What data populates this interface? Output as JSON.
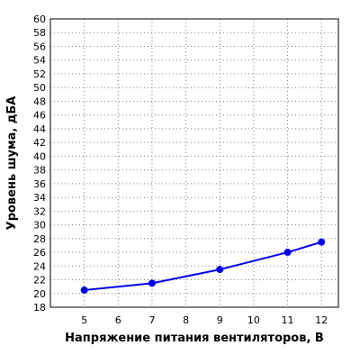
{
  "chart_data": {
    "type": "line",
    "title": "",
    "xlabel": "Напряжение питания вентиляторов, В",
    "ylabel": "Уровень шума, дБА",
    "xlim": [
      4,
      12.5
    ],
    "ylim": [
      18,
      60
    ],
    "xticks": [
      5,
      6,
      7,
      8,
      9,
      10,
      11,
      12
    ],
    "yticks": [
      18,
      20,
      22,
      24,
      26,
      28,
      30,
      32,
      34,
      36,
      38,
      40,
      42,
      44,
      46,
      48,
      50,
      52,
      54,
      56,
      58,
      60
    ],
    "grid": true,
    "legend": "none",
    "series": [
      {
        "x": [
          5,
          7,
          9,
          11,
          12
        ],
        "y": [
          20.5,
          21.5,
          23.5,
          26,
          27.5
        ],
        "color": "#0000ee"
      }
    ]
  }
}
